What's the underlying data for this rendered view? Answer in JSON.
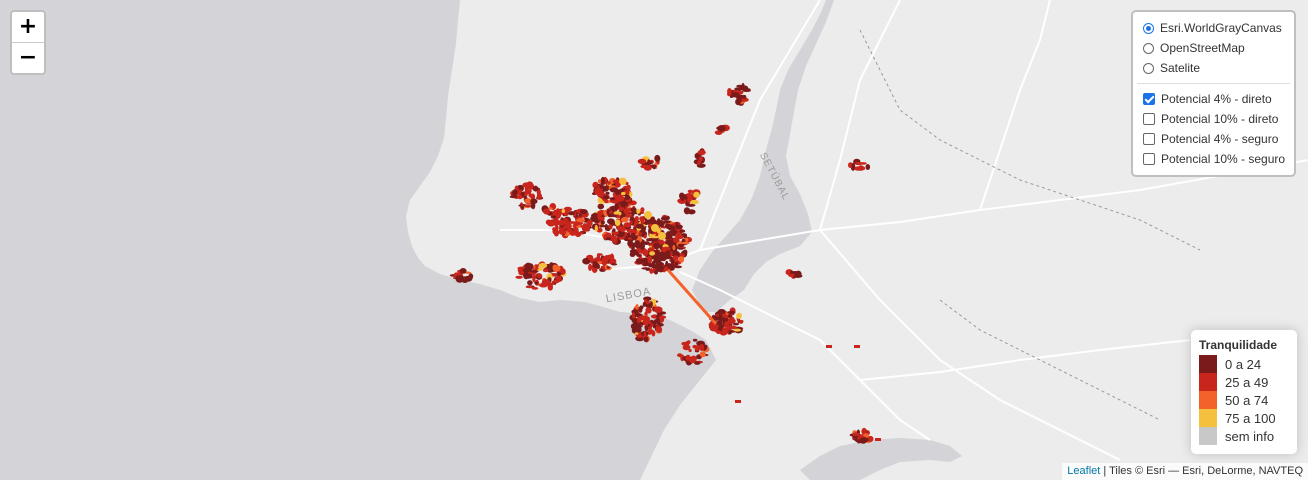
{
  "zoom": {
    "in_label": "+",
    "out_label": "−"
  },
  "map_labels": {
    "lisboa": "LISBOA",
    "setubal": "SETÚBAL"
  },
  "basemaps": [
    {
      "label": "Esri.WorldGrayCanvas",
      "selected": true
    },
    {
      "label": "OpenStreetMap",
      "selected": false
    },
    {
      "label": "Satelite",
      "selected": false
    }
  ],
  "overlays": [
    {
      "label": "Potencial 4% - direto",
      "checked": true
    },
    {
      "label": "Potencial 10% - direto",
      "checked": false
    },
    {
      "label": "Potencial 4% - seguro",
      "checked": false
    },
    {
      "label": "Potencial 10% - seguro",
      "checked": false
    }
  ],
  "legend": {
    "title": "Tranquilidade",
    "items": [
      {
        "label": "0 a 24",
        "color": "#7a1a1a"
      },
      {
        "label": "25 a 49",
        "color": "#c8251c"
      },
      {
        "label": "50 a 74",
        "color": "#f2622a"
      },
      {
        "label": "75 a 100",
        "color": "#f5c03e"
      },
      {
        "label": "sem info",
        "color": "#c8c8c8"
      }
    ]
  },
  "attribution": {
    "link": "Leaflet",
    "text": " | Tiles © Esri — Esri, DeLorme, NAVTEQ"
  }
}
